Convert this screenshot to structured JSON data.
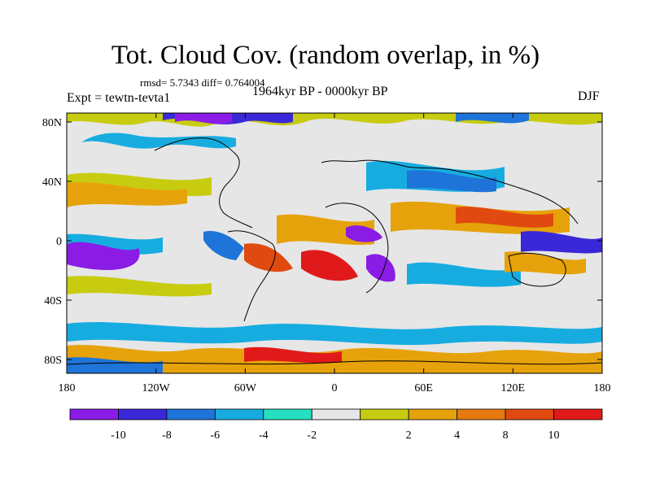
{
  "title": "Tot. Cloud Cov. (random overlap, in %)",
  "stats": "rmsd= 5.7343  diff= 0.764004",
  "experiment": "Expt = tewtn-tevta1",
  "period": "1964kyr BP - 0000kyr BP",
  "season": "DJF",
  "map": {
    "lat_ticks": [
      "80N",
      "40N",
      "0",
      "40S",
      "80S"
    ],
    "lon_ticks": [
      "180",
      "120W",
      "60W",
      "0",
      "60E",
      "120E",
      "180"
    ]
  },
  "colorbar": {
    "colors": [
      "#8a1ce6",
      "#3a28d8",
      "#1e74d8",
      "#17ace0",
      "#24e0c0",
      "#e6e6e6",
      "#c8cc10",
      "#e6a20a",
      "#e67a10",
      "#e04a10",
      "#e01a1a"
    ],
    "labels": [
      "-10",
      "-8",
      "-6",
      "-4",
      "-2",
      "2",
      "4",
      "8",
      "10"
    ]
  },
  "colors": {
    "background": "#ffffff",
    "neutral": "#e6e6e6"
  }
}
